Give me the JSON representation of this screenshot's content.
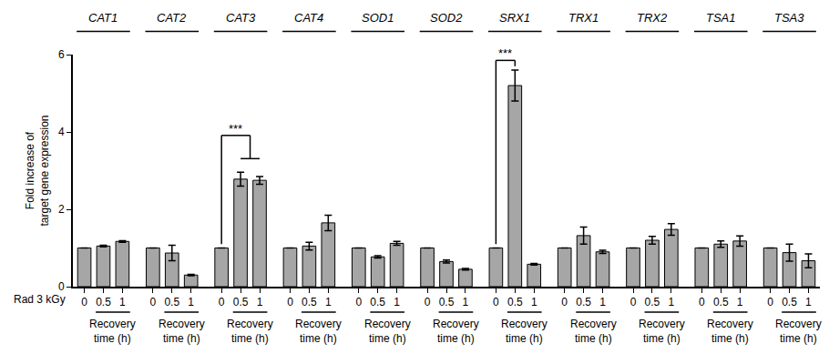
{
  "chart_data": {
    "type": "bar",
    "groups": [
      "CAT1",
      "CAT2",
      "CAT3",
      "CAT4",
      "SOD1",
      "SOD2",
      "SRX1",
      "TRX1",
      "TRX2",
      "TSA1",
      "TSA3"
    ],
    "categories": [
      "0",
      "0.5",
      "1",
      "0",
      "0.5",
      "1",
      "0",
      "0.5",
      "1",
      "0",
      "0.5",
      "1",
      "0",
      "0.5",
      "1",
      "0",
      "0.5",
      "1",
      "0",
      "0.5",
      "1",
      "0",
      "0.5",
      "1",
      "0",
      "0.5",
      "1",
      "0",
      "0.5",
      "1",
      "0",
      "0.5",
      "1"
    ],
    "values": [
      1,
      1.05,
      1.17,
      1,
      0.87,
      0.3,
      1,
      2.78,
      2.75,
      1,
      1.05,
      1.65,
      1,
      0.77,
      1.12,
      1,
      0.65,
      0.45,
      1,
      5.2,
      0.58,
      1,
      1.32,
      0.9,
      1,
      1.2,
      1.48,
      1,
      1.1,
      1.18,
      1,
      0.88,
      0.67
    ],
    "errors": [
      0,
      0.02,
      0.02,
      0,
      0.2,
      0.02,
      0,
      0.18,
      0.1,
      0,
      0.1,
      0.2,
      0,
      0.03,
      0.05,
      0,
      0.04,
      0.02,
      0,
      0.4,
      0.02,
      0,
      0.22,
      0.04,
      0,
      0.1,
      0.15,
      0,
      0.08,
      0.13,
      0,
      0.22,
      0.18
    ],
    "color": "#a6a6a6",
    "ylim": [
      0,
      6
    ],
    "yticks": [
      0,
      2,
      4,
      6
    ],
    "grid": false,
    "y_label": [
      "Fold increase of",
      "target gene expression"
    ],
    "row_label": "Rad 3 kGy",
    "group_sublabel": "Recovery time (h)",
    "significance": [
      {
        "from": 6,
        "to": [
          7,
          8
        ],
        "label": "***"
      },
      {
        "from": 18,
        "to": [
          19
        ],
        "label": "***"
      }
    ]
  }
}
